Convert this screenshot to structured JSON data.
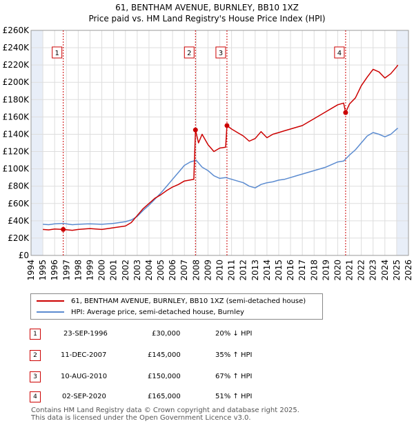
{
  "title": "61, BENTHAM AVENUE, BURNLEY, BB10 1XZ",
  "subtitle": "Price paid vs. HM Land Registry's House Price Index (HPI)",
  "colors": {
    "price_line": "#cc0000",
    "hpi_line": "#5b8bd0",
    "marker_dash": "#cc0000",
    "grid": "#dddddd",
    "shade": "#e8eef8"
  },
  "chart_data": {
    "type": "line",
    "title": "61, BENTHAM AVENUE, BURNLEY, BB10 1XZ",
    "subtitle": "Price paid vs. HM Land Registry's House Price Index (HPI)",
    "xlim": [
      1994,
      2026
    ],
    "ylim": [
      0,
      260000
    ],
    "x_ticks": [
      1994,
      1995,
      1996,
      1997,
      1998,
      1999,
      2000,
      2001,
      2002,
      2003,
      2004,
      2005,
      2006,
      2007,
      2008,
      2009,
      2010,
      2011,
      2012,
      2013,
      2014,
      2015,
      2016,
      2017,
      2018,
      2019,
      2020,
      2021,
      2022,
      2023,
      2024,
      2025,
      2026
    ],
    "y_ticks": [
      0,
      20000,
      40000,
      60000,
      80000,
      100000,
      120000,
      140000,
      160000,
      180000,
      200000,
      220000,
      240000,
      260000
    ],
    "y_tick_labels": [
      "£0",
      "£20K",
      "£40K",
      "£60K",
      "£80K",
      "£100K",
      "£120K",
      "£140K",
      "£160K",
      "£180K",
      "£200K",
      "£220K",
      "£240K",
      "£260K"
    ],
    "shaded_ranges": [
      [
        1994,
        1995
      ],
      [
        2025,
        2026
      ]
    ],
    "grid": true,
    "series": [
      {
        "name": "61, BENTHAM AVENUE, BURNLEY, BB10 1XZ (semi-detached house)",
        "points": [
          [
            1995,
            30000
          ],
          [
            1995.5,
            29500
          ],
          [
            1996,
            30500
          ],
          [
            1996.73,
            30000
          ],
          [
            1997.5,
            29000
          ],
          [
            1998,
            30000
          ],
          [
            1999,
            31000
          ],
          [
            2000,
            30000
          ],
          [
            2001,
            32000
          ],
          [
            2002,
            34000
          ],
          [
            2002.5,
            38000
          ],
          [
            2003,
            46000
          ],
          [
            2003.5,
            54000
          ],
          [
            2004,
            60000
          ],
          [
            2004.5,
            66000
          ],
          [
            2005,
            70000
          ],
          [
            2005.5,
            75000
          ],
          [
            2006,
            79000
          ],
          [
            2006.5,
            82000
          ],
          [
            2007,
            86000
          ],
          [
            2007.8,
            88000
          ],
          [
            2007.94,
            145000
          ],
          [
            2008.2,
            130000
          ],
          [
            2008.5,
            140000
          ],
          [
            2009,
            128000
          ],
          [
            2009.5,
            120000
          ],
          [
            2010,
            124000
          ],
          [
            2010.5,
            125000
          ],
          [
            2010.61,
            150000
          ],
          [
            2011,
            146000
          ],
          [
            2011.5,
            142000
          ],
          [
            2012,
            138000
          ],
          [
            2012.5,
            132000
          ],
          [
            2013,
            135000
          ],
          [
            2013.5,
            143000
          ],
          [
            2014,
            136000
          ],
          [
            2014.5,
            140000
          ],
          [
            2015,
            142000
          ],
          [
            2015.5,
            144000
          ],
          [
            2016,
            146000
          ],
          [
            2016.5,
            148000
          ],
          [
            2017,
            150000
          ],
          [
            2017.5,
            154000
          ],
          [
            2018,
            158000
          ],
          [
            2018.5,
            162000
          ],
          [
            2019,
            166000
          ],
          [
            2019.5,
            170000
          ],
          [
            2020,
            174000
          ],
          [
            2020.5,
            176000
          ],
          [
            2020.67,
            165000
          ],
          [
            2021,
            175000
          ],
          [
            2021.5,
            182000
          ],
          [
            2022,
            196000
          ],
          [
            2022.5,
            206000
          ],
          [
            2023,
            215000
          ],
          [
            2023.5,
            212000
          ],
          [
            2024,
            205000
          ],
          [
            2024.5,
            210000
          ],
          [
            2025,
            218000
          ],
          [
            2025.1,
            220000
          ]
        ]
      },
      {
        "name": "HPI: Average price, semi-detached house, Burnley",
        "points": [
          [
            1995,
            36000
          ],
          [
            1995.5,
            35500
          ],
          [
            1996,
            36500
          ],
          [
            1996.73,
            37000
          ],
          [
            1997.5,
            35500
          ],
          [
            1998,
            36000
          ],
          [
            1999,
            36500
          ],
          [
            2000,
            36000
          ],
          [
            2001,
            37000
          ],
          [
            2002,
            39000
          ],
          [
            2002.5,
            41000
          ],
          [
            2003,
            45000
          ],
          [
            2003.5,
            52000
          ],
          [
            2004,
            58000
          ],
          [
            2004.5,
            65000
          ],
          [
            2005,
            72000
          ],
          [
            2005.5,
            80000
          ],
          [
            2006,
            88000
          ],
          [
            2006.5,
            96000
          ],
          [
            2007,
            104000
          ],
          [
            2007.5,
            108000
          ],
          [
            2008,
            110000
          ],
          [
            2008.5,
            102000
          ],
          [
            2009,
            98000
          ],
          [
            2009.5,
            92000
          ],
          [
            2010,
            89000
          ],
          [
            2010.5,
            90000
          ],
          [
            2011,
            88000
          ],
          [
            2011.5,
            86000
          ],
          [
            2012,
            84000
          ],
          [
            2012.5,
            80000
          ],
          [
            2013,
            78000
          ],
          [
            2013.5,
            82000
          ],
          [
            2014,
            84000
          ],
          [
            2014.5,
            85000
          ],
          [
            2015,
            87000
          ],
          [
            2015.5,
            88000
          ],
          [
            2016,
            90000
          ],
          [
            2016.5,
            92000
          ],
          [
            2017,
            94000
          ],
          [
            2017.5,
            96000
          ],
          [
            2018,
            98000
          ],
          [
            2018.5,
            100000
          ],
          [
            2019,
            102000
          ],
          [
            2019.5,
            105000
          ],
          [
            2020,
            108000
          ],
          [
            2020.5,
            109000
          ],
          [
            2021,
            116000
          ],
          [
            2021.5,
            122000
          ],
          [
            2022,
            130000
          ],
          [
            2022.5,
            138000
          ],
          [
            2023,
            142000
          ],
          [
            2023.5,
            140000
          ],
          [
            2024,
            137000
          ],
          [
            2024.5,
            140000
          ],
          [
            2025,
            146000
          ],
          [
            2025.1,
            147000
          ]
        ]
      }
    ],
    "transactions": [
      {
        "id": "1",
        "x": 1996.73,
        "price": 30000
      },
      {
        "id": "2",
        "x": 2007.94,
        "price": 145000
      },
      {
        "id": "3",
        "x": 2010.61,
        "price": 150000
      },
      {
        "id": "4",
        "x": 2020.67,
        "price": 165000
      }
    ]
  },
  "legend": {
    "price_label": "61, BENTHAM AVENUE, BURNLEY, BB10 1XZ (semi-detached house)",
    "hpi_label": "HPI: Average price, semi-detached house, Burnley"
  },
  "transactions_table": [
    {
      "id": "1",
      "date": "23-SEP-1996",
      "price": "£30,000",
      "hpi": "20% ↓ HPI"
    },
    {
      "id": "2",
      "date": "11-DEC-2007",
      "price": "£145,000",
      "hpi": "35% ↑ HPI"
    },
    {
      "id": "3",
      "date": "10-AUG-2010",
      "price": "£150,000",
      "hpi": "67% ↑ HPI"
    },
    {
      "id": "4",
      "date": "02-SEP-2020",
      "price": "£165,000",
      "hpi": "51% ↑ HPI"
    }
  ],
  "footer": {
    "line1": "Contains HM Land Registry data © Crown copyright and database right 2025.",
    "line2": "This data is licensed under the Open Government Licence v3.0."
  }
}
